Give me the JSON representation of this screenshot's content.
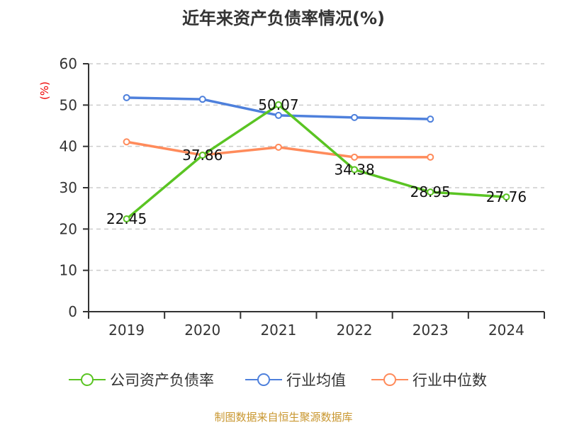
{
  "title": "近年来资产负债率情况(%)",
  "source": "制图数据来自恒生聚源数据库",
  "y_axis_unit": "(%)",
  "legend": [
    {
      "label": "公司资产负债率",
      "color": "#5ac423"
    },
    {
      "label": "行业均值",
      "color": "#4e80dc"
    },
    {
      "label": "行业中位数",
      "color": "#ff8b5b"
    }
  ],
  "chart_data": {
    "type": "line",
    "title": "近年来资产负债率情况(%)",
    "xlabel": "",
    "ylabel": "(%)",
    "categories": [
      "2019",
      "2020",
      "2021",
      "2022",
      "2023",
      "2024"
    ],
    "ylim": [
      0,
      60
    ],
    "yticks": [
      0,
      10,
      20,
      30,
      40,
      50,
      60
    ],
    "grid": true,
    "legend_position": "bottom",
    "series": [
      {
        "name": "公司资产负债率",
        "color": "#5ac423",
        "values": [
          22.45,
          37.86,
          50.07,
          34.38,
          28.95,
          27.76
        ],
        "data_labels": [
          "22.45",
          "37.86",
          "50.07",
          "34.38",
          "28.95",
          "27.76"
        ]
      },
      {
        "name": "行业均值",
        "color": "#4e80dc",
        "values": [
          51.8,
          51.4,
          47.5,
          47.0,
          46.6,
          null
        ]
      },
      {
        "name": "行业中位数",
        "color": "#ff8b5b",
        "values": [
          41.1,
          37.9,
          39.8,
          37.4,
          37.4,
          null
        ]
      }
    ]
  }
}
